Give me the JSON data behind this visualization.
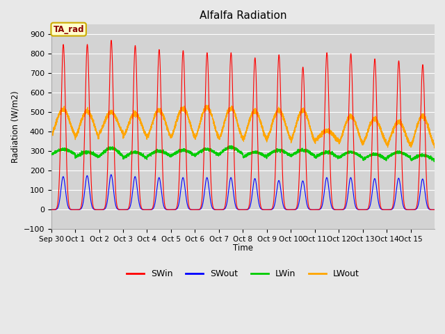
{
  "title": "Alfalfa Radiation",
  "ylabel": "Radiation (W/m2)",
  "xlabel": "Time",
  "annotation": "TA_rad",
  "ylim": [
    -100,
    950
  ],
  "yticks": [
    -100,
    0,
    100,
    200,
    300,
    400,
    500,
    600,
    700,
    800,
    900
  ],
  "bg_color": "#e8e8e8",
  "plot_bg_color": "#d3d3d3",
  "colors": {
    "SWin": "#ff0000",
    "SWout": "#0000ff",
    "LWin": "#00cc00",
    "LWout": "#ffa500"
  },
  "n_days": 16,
  "sw_peaks": [
    800,
    800,
    820,
    795,
    775,
    770,
    760,
    760,
    735,
    750,
    690,
    760,
    755,
    730,
    720,
    700
  ],
  "sw_peaks2": [
    795,
    800,
    820,
    790,
    775,
    770,
    760,
    760,
    740,
    750,
    695,
    760,
    755,
    730,
    730,
    735
  ],
  "swout_peaks": [
    170,
    175,
    180,
    170,
    165,
    165,
    165,
    165,
    160,
    150,
    148,
    165,
    165,
    160,
    162,
    158
  ],
  "lwout_day": [
    515,
    505,
    500,
    495,
    510,
    520,
    525,
    520,
    505,
    510,
    510,
    405,
    480,
    465,
    450,
    480
  ],
  "lwout_night": [
    385,
    375,
    395,
    375,
    375,
    375,
    370,
    365,
    360,
    365,
    355,
    355,
    345,
    340,
    335,
    330
  ],
  "lwin_base": [
    310,
    295,
    315,
    295,
    300,
    305,
    310,
    320,
    295,
    305,
    305,
    295,
    295,
    285,
    295,
    280
  ],
  "lwin_trough": [
    285,
    270,
    275,
    265,
    275,
    278,
    280,
    285,
    270,
    278,
    278,
    268,
    268,
    258,
    268,
    255
  ],
  "tick_labels": [
    "Sep 30",
    "Oct 1",
    "Oct 2",
    "Oct 3",
    "Oct 4",
    "Oct 5",
    "Oct 6",
    "Oct 7",
    "Oct 8",
    "Oct 9",
    "Oct 10",
    "Oct 11",
    "Oct 12",
    "Oct 13",
    "Oct 14",
    "Oct 15"
  ],
  "figsize": [
    6.4,
    4.8
  ],
  "dpi": 100
}
